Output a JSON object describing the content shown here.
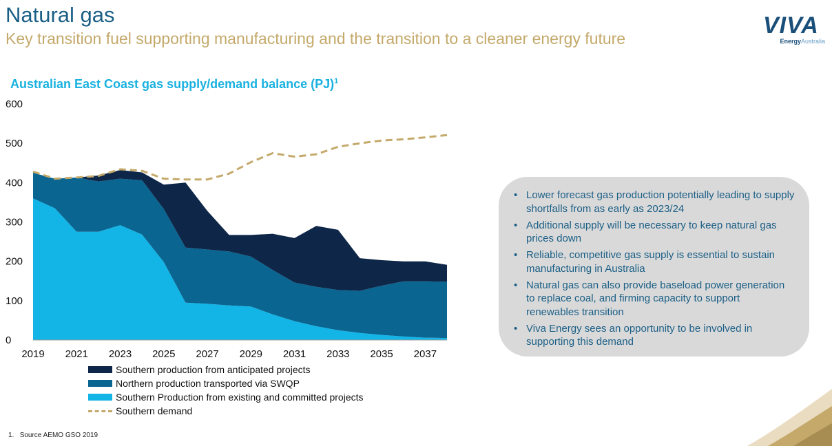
{
  "header": {
    "title": "Natural gas",
    "subtitle": "Key transition fuel supporting manufacturing and the transition to a cleaner energy future"
  },
  "logo": {
    "word": "VIVA",
    "sub_bold": "Energy",
    "sub_light": "Australia"
  },
  "chart_title": {
    "text": "Australian East Coast gas supply/demand balance (PJ)",
    "footnote_mark": "1"
  },
  "colors": {
    "existing": "#13b5e6",
    "northern": "#0a6591",
    "anticipated": "#0e2749",
    "demand": "#c4a96b"
  },
  "chart_data": {
    "type": "area",
    "stacked": true,
    "x": [
      2019,
      2020,
      2021,
      2022,
      2023,
      2024,
      2025,
      2026,
      2027,
      2028,
      2029,
      2030,
      2031,
      2032,
      2033,
      2034,
      2035,
      2036,
      2037,
      2038
    ],
    "x_tick_labels": [
      "2019",
      "2021",
      "2023",
      "2025",
      "2027",
      "2029",
      "2031",
      "2033",
      "2035",
      "2037"
    ],
    "ylim": [
      0,
      600
    ],
    "y_ticks": [
      0,
      100,
      200,
      300,
      400,
      500,
      600
    ],
    "y_tick_labels": [
      "0",
      "100",
      "200",
      "300",
      "400",
      "500",
      "600"
    ],
    "series": [
      {
        "name": "Southern Production from existing and committed projects",
        "values": [
          360,
          335,
          275,
          275,
          292,
          268,
          198,
          95,
          92,
          88,
          85,
          65,
          48,
          35,
          25,
          18,
          13,
          9,
          6,
          5
        ]
      },
      {
        "name": "Northern production transported via SWQP",
        "values": [
          65,
          75,
          138,
          128,
          118,
          138,
          135,
          140,
          138,
          137,
          127,
          113,
          98,
          100,
          102,
          107,
          125,
          140,
          143,
          143
        ]
      },
      {
        "name": "Southern production from anticipated projects",
        "values": [
          0,
          0,
          0,
          15,
          22,
          20,
          62,
          165,
          98,
          42,
          55,
          92,
          113,
          155,
          153,
          83,
          65,
          51,
          51,
          43
        ]
      }
    ],
    "demand": {
      "name": "Southern demand",
      "values": [
        428,
        410,
        413,
        417,
        434,
        430,
        410,
        408,
        408,
        423,
        452,
        475,
        466,
        472,
        491,
        500,
        507,
        510,
        515,
        521
      ]
    },
    "legend": [
      {
        "label": "Southern production from anticipated projects",
        "color_key": "anticipated"
      },
      {
        "label": "Northern production transported via SWQP",
        "color_key": "northern"
      },
      {
        "label": "Southern Production from existing and committed projects",
        "color_key": "existing"
      },
      {
        "label": "Southern demand",
        "color_key": "demand"
      }
    ]
  },
  "panel": {
    "bullets": [
      "Lower forecast gas production potentially leading to supply shortfalls from as early as 2023/24",
      "Additional supply will be necessary to keep natural gas prices down",
      "Reliable, competitive gas supply is essential to sustain manufacturing in Australia",
      "Natural gas can also provide baseload power generation to replace coal, and firming capacity to support renewables transition",
      "Viva Energy sees an opportunity to be involved in supporting this demand"
    ]
  },
  "footnote": {
    "number": "1.",
    "text": "Source AEMO GSO 2019"
  }
}
